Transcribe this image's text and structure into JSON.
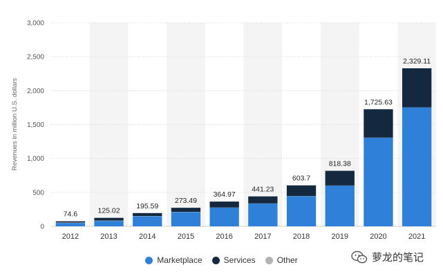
{
  "chart_data": {
    "type": "bar",
    "stacked": true,
    "categories": [
      "2012",
      "2013",
      "2014",
      "2015",
      "2016",
      "2017",
      "2018",
      "2019",
      "2020",
      "2021"
    ],
    "series": [
      {
        "name": "Marketplace",
        "color": "#2f80d8",
        "values": [
          50,
          80,
          150,
          210,
          275,
          335,
          445,
          600,
          1305,
          1750
        ]
      },
      {
        "name": "Services",
        "color": "#14283f",
        "values": [
          18,
          40,
          43,
          60,
          88,
          104,
          157,
          217,
          419,
          577
        ]
      },
      {
        "name": "Other",
        "color": "#b3b3b3",
        "values": [
          6.6,
          5.02,
          2.59,
          3.49,
          1.97,
          2.23,
          1.7,
          1.38,
          1.63,
          2.11
        ]
      }
    ],
    "totals_labels": [
      "74.6",
      "125.02",
      "195.59",
      "273.49",
      "364.97",
      "441.23",
      "603.7",
      "818.38",
      "1,725.63",
      "2,329.11"
    ],
    "totals": [
      74.6,
      125.02,
      195.59,
      273.49,
      364.97,
      441.23,
      603.7,
      818.38,
      1725.63,
      2329.11
    ],
    "ylabel": "Revenues in million U.S. dollars",
    "ylim": [
      0,
      3000
    ],
    "y_ticks": [
      0,
      500,
      1000,
      1500,
      2000,
      2500,
      3000
    ],
    "y_tick_labels": [
      "0",
      "500",
      "1,000",
      "1,500",
      "2,000",
      "2,500",
      "3,000"
    ],
    "grid": true,
    "legend_position": "bottom-center"
  },
  "legend": {
    "items": [
      {
        "label": "Marketplace",
        "color": "#2f80d8"
      },
      {
        "label": "Services",
        "color": "#14283f"
      },
      {
        "label": "Other",
        "color": "#b3b3b3"
      }
    ]
  },
  "watermark": {
    "text": "萝龙的笔记",
    "icon": "wechat-icon"
  }
}
